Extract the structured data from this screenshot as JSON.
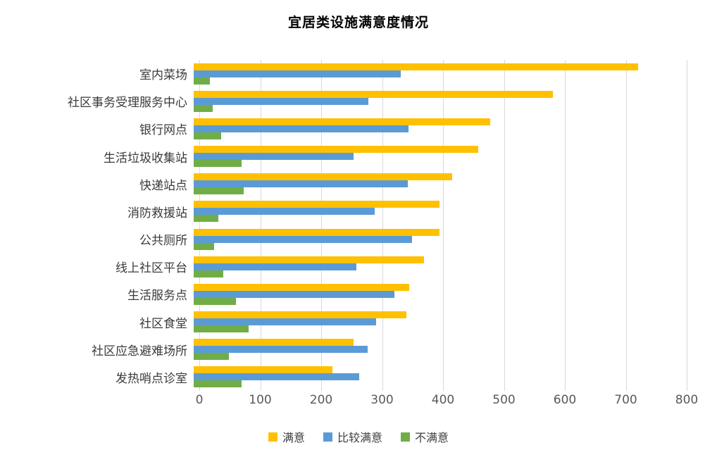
{
  "title": "宜居类设施满意度情况",
  "chart_data": {
    "type": "bar",
    "orientation": "horizontal",
    "title": "宜居类设施满意度情况",
    "categories": [
      "室内菜场",
      "社区事务受理服务中心",
      "银行网点",
      "生活垃圾收集站",
      "快递站点",
      "消防救援站",
      "公共厕所",
      "线上社区平台",
      "生活服务点",
      "社区食堂",
      "社区应急避难场所",
      "发热哨点诊室"
    ],
    "series": [
      {
        "name": "满意",
        "color": "#FFC000",
        "values": [
          730,
          590,
          487,
          467,
          424,
          403,
          403,
          378,
          354,
          349,
          262,
          228
        ]
      },
      {
        "name": "比较满意",
        "color": "#5B9BD5",
        "values": [
          340,
          287,
          353,
          262,
          352,
          297,
          358,
          267,
          330,
          299,
          286,
          272
        ]
      },
      {
        "name": "不满意",
        "color": "#70AD47",
        "values": [
          27,
          31,
          45,
          79,
          82,
          41,
          33,
          48,
          69,
          90,
          58,
          79
        ]
      }
    ],
    "xlim": [
      0,
      800
    ],
    "x_ticks": [
      0,
      100,
      200,
      300,
      400,
      500,
      600,
      700,
      800
    ],
    "grid": "vertical",
    "legend_position": "bottom"
  },
  "colors": {
    "gridline": "#d9d9d9",
    "axis_text": "#595959",
    "category_text": "#3a3a3a"
  }
}
